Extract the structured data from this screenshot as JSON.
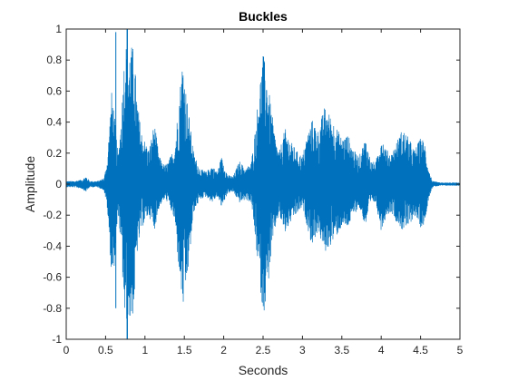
{
  "chart_data": {
    "type": "line",
    "title": "Buckles",
    "xlabel": "Seconds",
    "ylabel": "Amplitude",
    "xlim": [
      0,
      5
    ],
    "ylim": [
      -1,
      1
    ],
    "x_ticks": [
      0,
      0.5,
      1,
      1.5,
      2,
      2.5,
      3,
      3.5,
      4,
      4.5,
      5
    ],
    "y_ticks": [
      -1,
      -0.8,
      -0.6,
      -0.4,
      -0.2,
      0,
      0.2,
      0.4,
      0.6,
      0.8,
      1
    ],
    "x_tick_labels": [
      "0",
      "0.5",
      "1",
      "1.5",
      "2",
      "2.5",
      "3",
      "3.5",
      "4",
      "4.5",
      "5"
    ],
    "y_tick_labels": [
      "-1",
      "-0.8",
      "-0.6",
      "-0.4",
      "-0.2",
      "0",
      "0.2",
      "0.4",
      "0.6",
      "0.8",
      "1"
    ],
    "grid": false,
    "line_color": "#0072BD",
    "envelope": {
      "t": [
        0.0,
        0.1,
        0.2,
        0.25,
        0.3,
        0.4,
        0.48,
        0.52,
        0.58,
        0.62,
        0.66,
        0.7,
        0.75,
        0.78,
        0.82,
        0.86,
        0.9,
        0.95,
        1.0,
        1.05,
        1.12,
        1.18,
        1.25,
        1.3,
        1.38,
        1.43,
        1.48,
        1.52,
        1.58,
        1.62,
        1.7,
        1.78,
        1.85,
        1.92,
        1.97,
        2.05,
        2.12,
        2.2,
        2.28,
        2.35,
        2.4,
        2.45,
        2.5,
        2.55,
        2.6,
        2.65,
        2.7,
        2.78,
        2.85,
        2.92,
        3.0,
        3.05,
        3.12,
        3.2,
        3.28,
        3.35,
        3.42,
        3.5,
        3.58,
        3.65,
        3.72,
        3.8,
        3.87,
        3.93,
        4.0,
        4.07,
        4.13,
        4.2,
        4.27,
        4.35,
        4.42,
        4.5,
        4.55,
        4.6,
        4.65,
        4.75,
        5.0
      ],
      "pos": [
        0.02,
        0.02,
        0.03,
        0.05,
        0.02,
        0.02,
        0.04,
        0.15,
        0.62,
        0.4,
        0.18,
        0.45,
        0.95,
        0.85,
        0.9,
        0.88,
        0.55,
        0.35,
        0.28,
        0.22,
        0.4,
        0.18,
        0.12,
        0.15,
        0.25,
        0.55,
        0.82,
        0.62,
        0.36,
        0.2,
        0.1,
        0.08,
        0.12,
        0.08,
        0.18,
        0.06,
        0.05,
        0.15,
        0.1,
        0.14,
        0.35,
        0.62,
        0.85,
        0.7,
        0.5,
        0.32,
        0.2,
        0.36,
        0.28,
        0.22,
        0.18,
        0.3,
        0.42,
        0.35,
        0.5,
        0.45,
        0.38,
        0.3,
        0.32,
        0.22,
        0.18,
        0.3,
        0.15,
        0.14,
        0.32,
        0.22,
        0.2,
        0.28,
        0.36,
        0.3,
        0.22,
        0.3,
        0.28,
        0.1,
        0.02,
        0.01,
        0.01
      ],
      "neg": [
        0.02,
        0.02,
        0.03,
        0.05,
        0.02,
        0.02,
        0.04,
        0.15,
        0.62,
        0.5,
        0.18,
        0.45,
        0.95,
        0.85,
        0.92,
        0.8,
        0.45,
        0.3,
        0.24,
        0.2,
        0.3,
        0.15,
        0.1,
        0.12,
        0.25,
        0.55,
        0.82,
        0.7,
        0.4,
        0.18,
        0.1,
        0.08,
        0.12,
        0.08,
        0.15,
        0.06,
        0.05,
        0.12,
        0.1,
        0.12,
        0.35,
        0.6,
        0.85,
        0.72,
        0.48,
        0.3,
        0.2,
        0.32,
        0.25,
        0.2,
        0.15,
        0.25,
        0.4,
        0.3,
        0.45,
        0.4,
        0.35,
        0.28,
        0.28,
        0.2,
        0.15,
        0.28,
        0.12,
        0.12,
        0.3,
        0.2,
        0.18,
        0.25,
        0.3,
        0.28,
        0.2,
        0.28,
        0.26,
        0.1,
        0.02,
        0.01,
        0.01
      ]
    }
  }
}
